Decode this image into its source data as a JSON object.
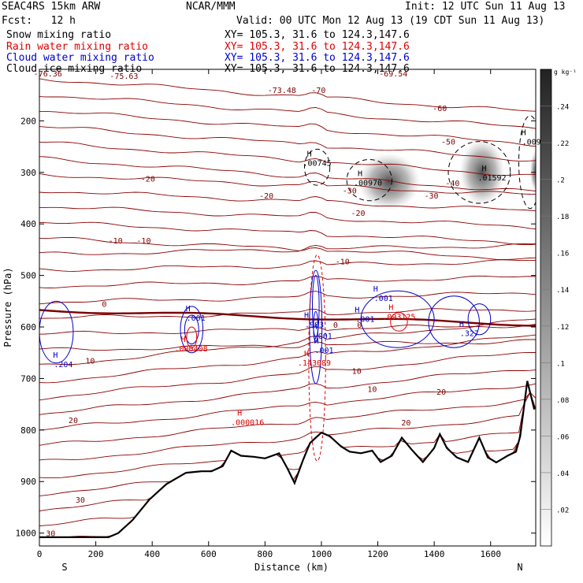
{
  "header": {
    "title_left": "SEAC4RS 15km ARW",
    "center": "NCAR/MMM",
    "init": "Init: 12 UTC Sun 11 Aug 13",
    "fcst": "Fcst:   12 h",
    "valid": "Valid: 00 UTC Mon 12 Aug 13 (19 CDT Sun 11 Aug 13)",
    "fields": [
      {
        "label": "Snow mixing ratio",
        "xy": "XY= 105.3, 31.6 to 124.3,147.6",
        "color": "#000000"
      },
      {
        "label": "Rain water mixing ratio",
        "xy": "XY= 105.3, 31.6 to 124.3,147.6",
        "color": "#e00000"
      },
      {
        "label": "Cloud water mixing ratio",
        "xy": "XY= 105.3, 31.6 to 124.3,147.6",
        "color": "#0000cc"
      },
      {
        "label": "Cloud ice mixing ratio",
        "xy": "XY= 105.3, 31.6 to 124.3,147.6",
        "color": "#000000"
      }
    ]
  },
  "chart_data": {
    "type": "contour",
    "xlabel": "Distance (km)",
    "ylabel": "Pressure (hPa)",
    "xlim": [
      0,
      1760
    ],
    "ylim": [
      100,
      1025
    ],
    "x_ticks": [
      0,
      200,
      400,
      600,
      800,
      1000,
      1200,
      1400,
      1600
    ],
    "y_ticks": [
      200,
      300,
      400,
      500,
      600,
      700,
      800,
      900,
      1000
    ],
    "x_end_labels": {
      "left": "S",
      "right": "N"
    },
    "colorbar": {
      "unit": "g kg⁻¹",
      "ticks": [
        ".02",
        ".04",
        ".06",
        ".08",
        ".1",
        ".12",
        ".14",
        ".16",
        ".18",
        ".2",
        ".22",
        ".24"
      ]
    },
    "temperature_contour_labels": [
      {
        "x": 30,
        "p": 108,
        "text": "-76.36"
      },
      {
        "x": 300,
        "p": 112,
        "text": "-75.63"
      },
      {
        "x": 1255,
        "p": 108,
        "text": "-69.54"
      },
      {
        "x": 860,
        "p": 140,
        "text": "-73.48"
      },
      {
        "x": 990,
        "p": 140,
        "text": "-70"
      },
      {
        "x": 1420,
        "p": 175,
        "text": "-60"
      },
      {
        "x": 1450,
        "p": 240,
        "text": "-50"
      },
      {
        "x": 1465,
        "p": 320,
        "text": "-40"
      },
      {
        "x": 1100,
        "p": 335,
        "text": "-30"
      },
      {
        "x": 1390,
        "p": 345,
        "text": "-30"
      },
      {
        "x": 385,
        "p": 312,
        "text": "-20"
      },
      {
        "x": 805,
        "p": 345,
        "text": "-20"
      },
      {
        "x": 1130,
        "p": 378,
        "text": "-20"
      },
      {
        "x": 270,
        "p": 432,
        "text": "-10"
      },
      {
        "x": 370,
        "p": 432,
        "text": "-10"
      },
      {
        "x": 1075,
        "p": 472,
        "text": "-10"
      },
      {
        "x": 230,
        "p": 555,
        "text": "0"
      },
      {
        "x": 1050,
        "p": 595,
        "text": "0"
      },
      {
        "x": 1135,
        "p": 595,
        "text": "0"
      },
      {
        "x": 180,
        "p": 665,
        "text": "10"
      },
      {
        "x": 1125,
        "p": 685,
        "text": "10"
      },
      {
        "x": 1180,
        "p": 720,
        "text": "10"
      },
      {
        "x": 120,
        "p": 780,
        "text": "20"
      },
      {
        "x": 1300,
        "p": 785,
        "text": "20"
      },
      {
        "x": 1425,
        "p": 725,
        "text": "20"
      },
      {
        "x": 145,
        "p": 935,
        "text": "30"
      },
      {
        "x": 40,
        "p": 1000,
        "text": "30"
      }
    ],
    "max_labels": [
      {
        "x": 985,
        "p": 280,
        "text": ".00745",
        "color": "#000000"
      },
      {
        "x": 1165,
        "p": 318,
        "text": ".00970",
        "color": "#000000"
      },
      {
        "x": 1605,
        "p": 308,
        "text": ".01592",
        "color": "#000000"
      },
      {
        "x": 1745,
        "p": 238,
        "text": ".009",
        "color": "#000000"
      },
      {
        "x": 555,
        "p": 580,
        "text": ".001",
        "color": "#0000cc"
      },
      {
        "x": 85,
        "p": 670,
        "text": ".204",
        "color": "#0000cc"
      },
      {
        "x": 1220,
        "p": 542,
        "text": ".001",
        "color": "#0000cc"
      },
      {
        "x": 1155,
        "p": 582,
        "text": ".001",
        "color": "#0000cc"
      },
      {
        "x": 1525,
        "p": 610,
        "text": ".327",
        "color": "#0000cc"
      },
      {
        "x": 975,
        "p": 593,
        "text": ".903",
        "color": "#0000cc"
      },
      {
        "x": 1005,
        "p": 615,
        "text": ".001",
        "color": "#0000cc"
      },
      {
        "x": 1010,
        "p": 643,
        "text": ".001",
        "color": "#0000cc"
      },
      {
        "x": 538,
        "p": 640,
        "text": ".000408",
        "color": "#e00000"
      },
      {
        "x": 1275,
        "p": 578,
        "text": ".093125",
        "color": "#e00000"
      },
      {
        "x": 975,
        "p": 667,
        "text": ".143089",
        "color": "#e00000"
      },
      {
        "x": 738,
        "p": 783,
        "text": ".000016",
        "color": "#e00000"
      }
    ],
    "terrain_pressure": [
      [
        0,
        1008
      ],
      [
        245,
        1008
      ],
      [
        280,
        1000
      ],
      [
        330,
        975
      ],
      [
        390,
        935
      ],
      [
        450,
        905
      ],
      [
        520,
        883
      ],
      [
        575,
        880
      ],
      [
        610,
        880
      ],
      [
        650,
        870
      ],
      [
        680,
        840
      ],
      [
        715,
        850
      ],
      [
        760,
        852
      ],
      [
        800,
        855
      ],
      [
        850,
        845
      ],
      [
        880,
        875
      ],
      [
        905,
        903
      ],
      [
        935,
        858
      ],
      [
        960,
        825
      ],
      [
        1000,
        805
      ],
      [
        1030,
        812
      ],
      [
        1070,
        832
      ],
      [
        1100,
        842
      ],
      [
        1140,
        845
      ],
      [
        1180,
        840
      ],
      [
        1210,
        862
      ],
      [
        1250,
        850
      ],
      [
        1285,
        815
      ],
      [
        1320,
        838
      ],
      [
        1360,
        862
      ],
      [
        1400,
        835
      ],
      [
        1420,
        808
      ],
      [
        1445,
        835
      ],
      [
        1480,
        853
      ],
      [
        1520,
        862
      ],
      [
        1560,
        815
      ],
      [
        1590,
        853
      ],
      [
        1620,
        863
      ],
      [
        1660,
        850
      ],
      [
        1690,
        842
      ],
      [
        1705,
        812
      ],
      [
        1730,
        705
      ],
      [
        1755,
        760
      ]
    ],
    "snow_max_shading": [
      {
        "x": 1240,
        "p": 318,
        "rx": 110,
        "rp": 55,
        "max": 0.13
      },
      {
        "x": 1570,
        "p": 300,
        "rx": 80,
        "rp": 65,
        "max": 0.22
      },
      {
        "x": 1760,
        "p": 298,
        "rx": 20,
        "rp": 40,
        "max": 0.17
      }
    ]
  }
}
